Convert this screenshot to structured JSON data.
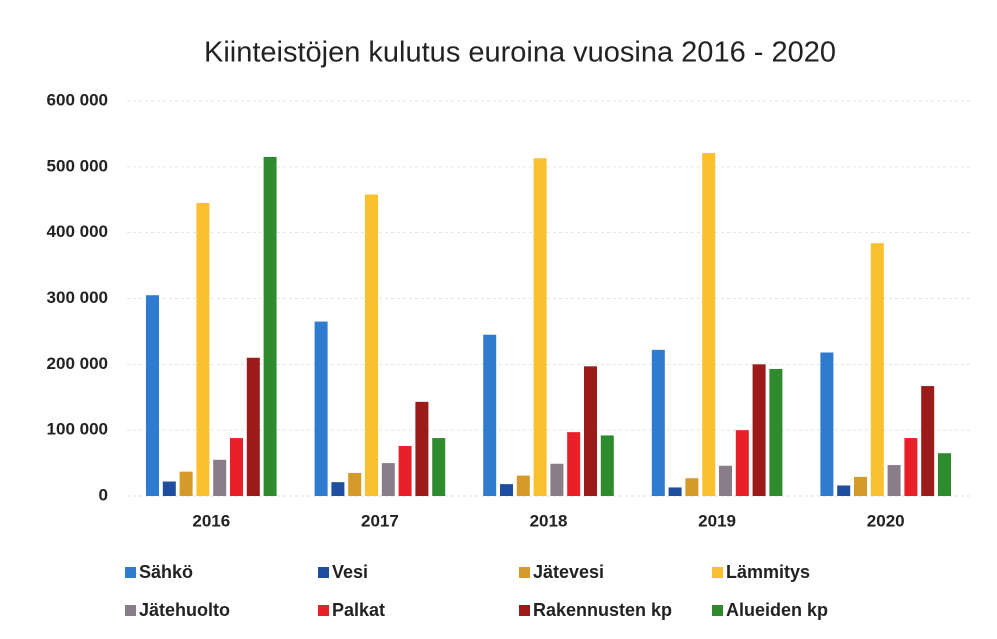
{
  "chart_data": {
    "type": "bar",
    "title": "Kiinteistöjen kulutus euroina vuosina 2016 - 2020",
    "categories": [
      "2016",
      "2017",
      "2018",
      "2019",
      "2020"
    ],
    "series": [
      {
        "name": "Sähkö",
        "color": "#2f7bd0",
        "values": [
          305000,
          265000,
          245000,
          222000,
          218000
        ]
      },
      {
        "name": "Vesi",
        "color": "#1f4ea0",
        "values": [
          22000,
          21000,
          18000,
          13000,
          16000
        ]
      },
      {
        "name": "Jätevesi",
        "color": "#d49a2a",
        "values": [
          37000,
          35000,
          31000,
          27000,
          29000
        ]
      },
      {
        "name": "Lämmitys",
        "color": "#fbc02d",
        "values": [
          445000,
          458000,
          513000,
          521000,
          384000
        ]
      },
      {
        "name": "Jätehuolto",
        "color": "#8a7d8a",
        "values": [
          55000,
          50000,
          49000,
          46000,
          47000
        ]
      },
      {
        "name": "Palkat",
        "color": "#e8202a",
        "values": [
          88000,
          76000,
          97000,
          100000,
          88000
        ]
      },
      {
        "name": "Rakennusten kp",
        "color": "#9b1b1b",
        "values": [
          210000,
          143000,
          197000,
          200000,
          167000
        ]
      },
      {
        "name": "Alueiden kp",
        "color": "#2e8b2e",
        "values": [
          515000,
          88000,
          92000,
          193000,
          65000
        ]
      }
    ],
    "ylim": [
      0,
      600000
    ],
    "yticks": [
      0,
      {
        "value": 100000,
        "label": "100 000"
      },
      {
        "value": 200000,
        "label": "200 000"
      },
      {
        "value": 300000,
        "label": "300 000"
      },
      {
        "value": 400000,
        "label": "400 000"
      },
      {
        "value": 500000,
        "label": "500 000"
      },
      {
        "value": 600000,
        "label": "600 000"
      }
    ],
    "grid": true,
    "legend": "bottom"
  }
}
